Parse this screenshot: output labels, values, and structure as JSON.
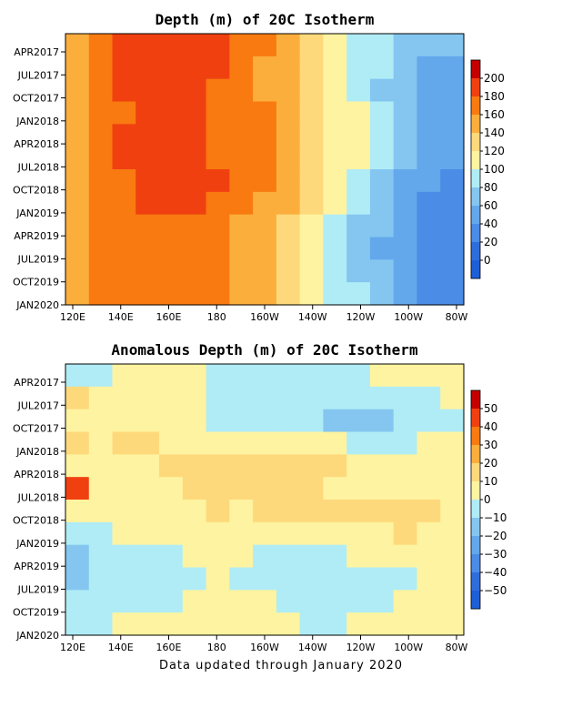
{
  "footer": "Data updated through January 2020",
  "chart_data": [
    {
      "type": "heatmap",
      "title": "Depth (m) of 20C Isotherm",
      "x_ticks": [
        "120E",
        "140E",
        "160E",
        "180",
        "160W",
        "140W",
        "120W",
        "100W",
        "80W"
      ],
      "y_ticks": [
        "APR2017",
        "JUL2017",
        "OCT2017",
        "JAN2018",
        "APR2018",
        "JUL2018",
        "OCT2018",
        "JAN2019",
        "APR2019",
        "JUL2019",
        "OCT2019",
        "JAN2020"
      ],
      "colorbar_levels": [
        200,
        180,
        160,
        140,
        120,
        100,
        80,
        60,
        40,
        20,
        0
      ],
      "colorbar_colors": [
        "#c40000",
        "#f04010",
        "#f87a10",
        "#fcae3c",
        "#fdd97c",
        "#fef3a0",
        "#b0ecf6",
        "#84c6f0",
        "#64a8ec",
        "#4a8ce6",
        "#2e6edc",
        "#1d5fd8"
      ],
      "columns": [
        {
          "lon": "120E",
          "values": [
            150,
            148,
            146,
            140,
            145,
            150,
            145,
            140,
            140,
            142,
            140,
            140
          ]
        },
        {
          "lon": "130E",
          "values": [
            178,
            172,
            170,
            168,
            170,
            170,
            168,
            165,
            162,
            160,
            160,
            160
          ]
        },
        {
          "lon": "140E",
          "values": [
            188,
            185,
            180,
            178,
            180,
            180,
            178,
            175,
            175,
            172,
            172,
            170
          ]
        },
        {
          "lon": "150E",
          "values": [
            192,
            188,
            184,
            182,
            184,
            182,
            182,
            180,
            178,
            175,
            175,
            172
          ]
        },
        {
          "lon": "160E",
          "values": [
            192,
            188,
            182,
            182,
            184,
            182,
            184,
            182,
            178,
            176,
            175,
            172
          ]
        },
        {
          "lon": "170E",
          "values": [
            190,
            186,
            180,
            180,
            182,
            180,
            186,
            185,
            178,
            176,
            175,
            172
          ]
        },
        {
          "lon": "180",
          "values": [
            185,
            182,
            178,
            178,
            178,
            178,
            180,
            178,
            172,
            170,
            172,
            170
          ]
        },
        {
          "lon": "170W",
          "values": [
            175,
            172,
            170,
            170,
            170,
            168,
            170,
            168,
            150,
            150,
            155,
            155
          ]
        },
        {
          "lon": "160W",
          "values": [
            160,
            158,
            158,
            160,
            160,
            160,
            162,
            158,
            142,
            140,
            145,
            150
          ]
        },
        {
          "lon": "150W",
          "values": [
            140,
            140,
            145,
            148,
            150,
            148,
            150,
            140,
            130,
            128,
            130,
            135
          ]
        },
        {
          "lon": "140W",
          "values": [
            120,
            122,
            125,
            130,
            132,
            132,
            130,
            120,
            110,
            108,
            110,
            115
          ]
        },
        {
          "lon": "130W",
          "values": [
            105,
            108,
            110,
            112,
            115,
            115,
            112,
            100,
            92,
            90,
            92,
            95
          ]
        },
        {
          "lon": "120W",
          "values": [
            95,
            95,
            98,
            100,
            102,
            100,
            95,
            88,
            78,
            72,
            75,
            80
          ]
        },
        {
          "lon": "110W",
          "values": [
            80,
            80,
            78,
            80,
            82,
            80,
            78,
            70,
            60,
            58,
            60,
            62
          ]
        },
        {
          "lon": "100W",
          "values": [
            70,
            68,
            62,
            62,
            65,
            62,
            58,
            50,
            45,
            42,
            45,
            50
          ]
        },
        {
          "lon": "90W",
          "values": [
            60,
            58,
            48,
            46,
            50,
            48,
            45,
            38,
            32,
            30,
            32,
            38
          ]
        },
        {
          "lon": "80W",
          "values": [
            62,
            58,
            45,
            40,
            42,
            42,
            38,
            30,
            28,
            25,
            28,
            35
          ]
        }
      ]
    },
    {
      "type": "heatmap",
      "title": "Anomalous Depth (m) of 20C Isotherm",
      "x_ticks": [
        "120E",
        "140E",
        "160E",
        "180",
        "160W",
        "140W",
        "120W",
        "100W",
        "80W"
      ],
      "y_ticks": [
        "APR2017",
        "JUL2017",
        "OCT2017",
        "JAN2018",
        "APR2018",
        "JUL2018",
        "OCT2018",
        "JAN2019",
        "APR2019",
        "JUL2019",
        "OCT2019",
        "JAN2020"
      ],
      "colorbar_levels": [
        50,
        40,
        30,
        20,
        10,
        0,
        -10,
        -20,
        -30,
        -40,
        -50
      ],
      "colorbar_colors": [
        "#c40000",
        "#f04010",
        "#f87a10",
        "#fcae3c",
        "#fdd97c",
        "#fef3a0",
        "#b0ecf6",
        "#84c6f0",
        "#64a8ec",
        "#4a8ce6",
        "#2e6edc",
        "#1d5fd8"
      ],
      "columns": [
        {
          "lon": "120E",
          "values": [
            -5,
            15,
            5,
            10,
            5,
            40,
            2,
            -10,
            -15,
            -15,
            -10,
            -5
          ]
        },
        {
          "lon": "130E",
          "values": [
            -5,
            5,
            5,
            8,
            5,
            8,
            5,
            -5,
            -10,
            -10,
            -8,
            -3
          ]
        },
        {
          "lon": "140E",
          "values": [
            2,
            5,
            5,
            10,
            6,
            6,
            5,
            2,
            -5,
            -8,
            -5,
            2
          ]
        },
        {
          "lon": "150E",
          "values": [
            5,
            8,
            5,
            12,
            8,
            6,
            5,
            2,
            -5,
            -5,
            -3,
            3
          ]
        },
        {
          "lon": "160E",
          "values": [
            5,
            5,
            2,
            8,
            10,
            8,
            5,
            3,
            -3,
            -3,
            -2,
            5
          ]
        },
        {
          "lon": "170E",
          "values": [
            2,
            2,
            0,
            5,
            12,
            10,
            8,
            5,
            0,
            -2,
            2,
            5
          ]
        },
        {
          "lon": "180",
          "values": [
            -2,
            -2,
            -3,
            3,
            12,
            12,
            10,
            5,
            2,
            0,
            3,
            5
          ]
        },
        {
          "lon": "170W",
          "values": [
            -3,
            -3,
            -3,
            5,
            12,
            12,
            8,
            3,
            0,
            -3,
            2,
            3
          ]
        },
        {
          "lon": "160W",
          "values": [
            -3,
            -5,
            -5,
            5,
            12,
            12,
            10,
            3,
            -2,
            -5,
            0,
            2
          ]
        },
        {
          "lon": "150W",
          "values": [
            -2,
            -5,
            -8,
            5,
            15,
            12,
            10,
            5,
            -3,
            -5,
            -3,
            0
          ]
        },
        {
          "lon": "140W",
          "values": [
            -3,
            -8,
            -10,
            3,
            12,
            10,
            10,
            3,
            -5,
            -8,
            -5,
            -3
          ]
        },
        {
          "lon": "130W",
          "values": [
            -3,
            -8,
            -12,
            0,
            10,
            8,
            10,
            3,
            -3,
            -8,
            -5,
            -2
          ]
        },
        {
          "lon": "120W",
          "values": [
            -2,
            -8,
            -12,
            -2,
            8,
            5,
            10,
            5,
            0,
            -5,
            -3,
            0
          ]
        },
        {
          "lon": "110W",
          "values": [
            0,
            -10,
            -12,
            -3,
            5,
            5,
            12,
            8,
            2,
            -3,
            -3,
            2
          ]
        },
        {
          "lon": "100W",
          "values": [
            2,
            -8,
            -10,
            -3,
            3,
            3,
            18,
            10,
            3,
            -2,
            0,
            5
          ]
        },
        {
          "lon": "90W",
          "values": [
            3,
            -5,
            -8,
            0,
            3,
            2,
            12,
            8,
            3,
            0,
            2,
            5
          ]
        },
        {
          "lon": "80W",
          "values": [
            5,
            0,
            -3,
            2,
            3,
            2,
            8,
            5,
            2,
            0,
            2,
            5
          ]
        }
      ]
    }
  ]
}
